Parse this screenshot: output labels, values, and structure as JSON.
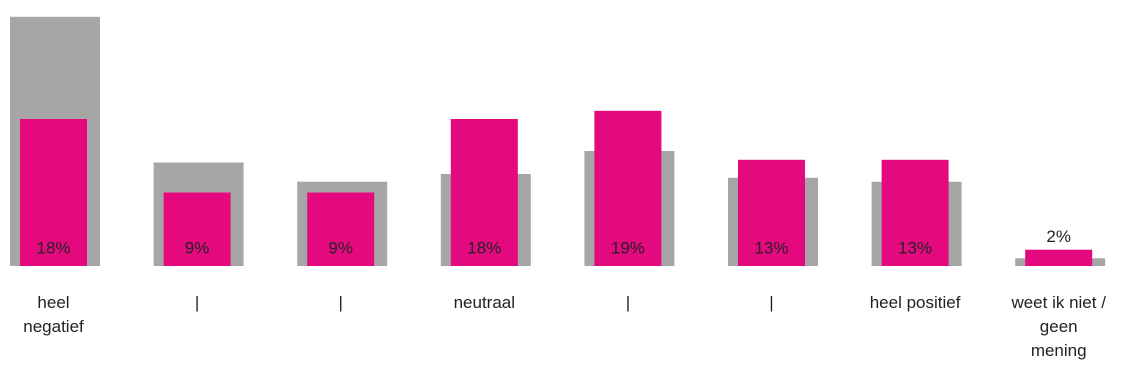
{
  "chart_data": {
    "type": "bar",
    "categories": [
      [
        "heel",
        "negatief"
      ],
      [
        "|"
      ],
      [
        "|"
      ],
      [
        "neutraal"
      ],
      [
        "|"
      ],
      [
        "|"
      ],
      [
        "heel positief"
      ],
      [
        "weet ik niet /",
        "geen",
        "mening"
      ]
    ],
    "series": [
      {
        "values": [
          32.5,
          13.5,
          11,
          12,
          15,
          11.5,
          11,
          1
        ],
        "role": "background-reference",
        "color": "#a6a6a6"
      },
      {
        "values": [
          18,
          9,
          9,
          18,
          19,
          13,
          13,
          2
        ],
        "role": "foreground",
        "color": "#e5097f",
        "labels": [
          "18%",
          "9%",
          "9%",
          "18%",
          "19%",
          "13%",
          "13%",
          "2%"
        ]
      }
    ],
    "ylim": [
      0,
      33
    ],
    "grid": false,
    "legend": "none",
    "value_label_position": [
      "inside-bottom",
      "inside-bottom",
      "inside-bottom",
      "inside-bottom",
      "inside-bottom",
      "inside-bottom",
      "inside-bottom",
      "above"
    ]
  }
}
